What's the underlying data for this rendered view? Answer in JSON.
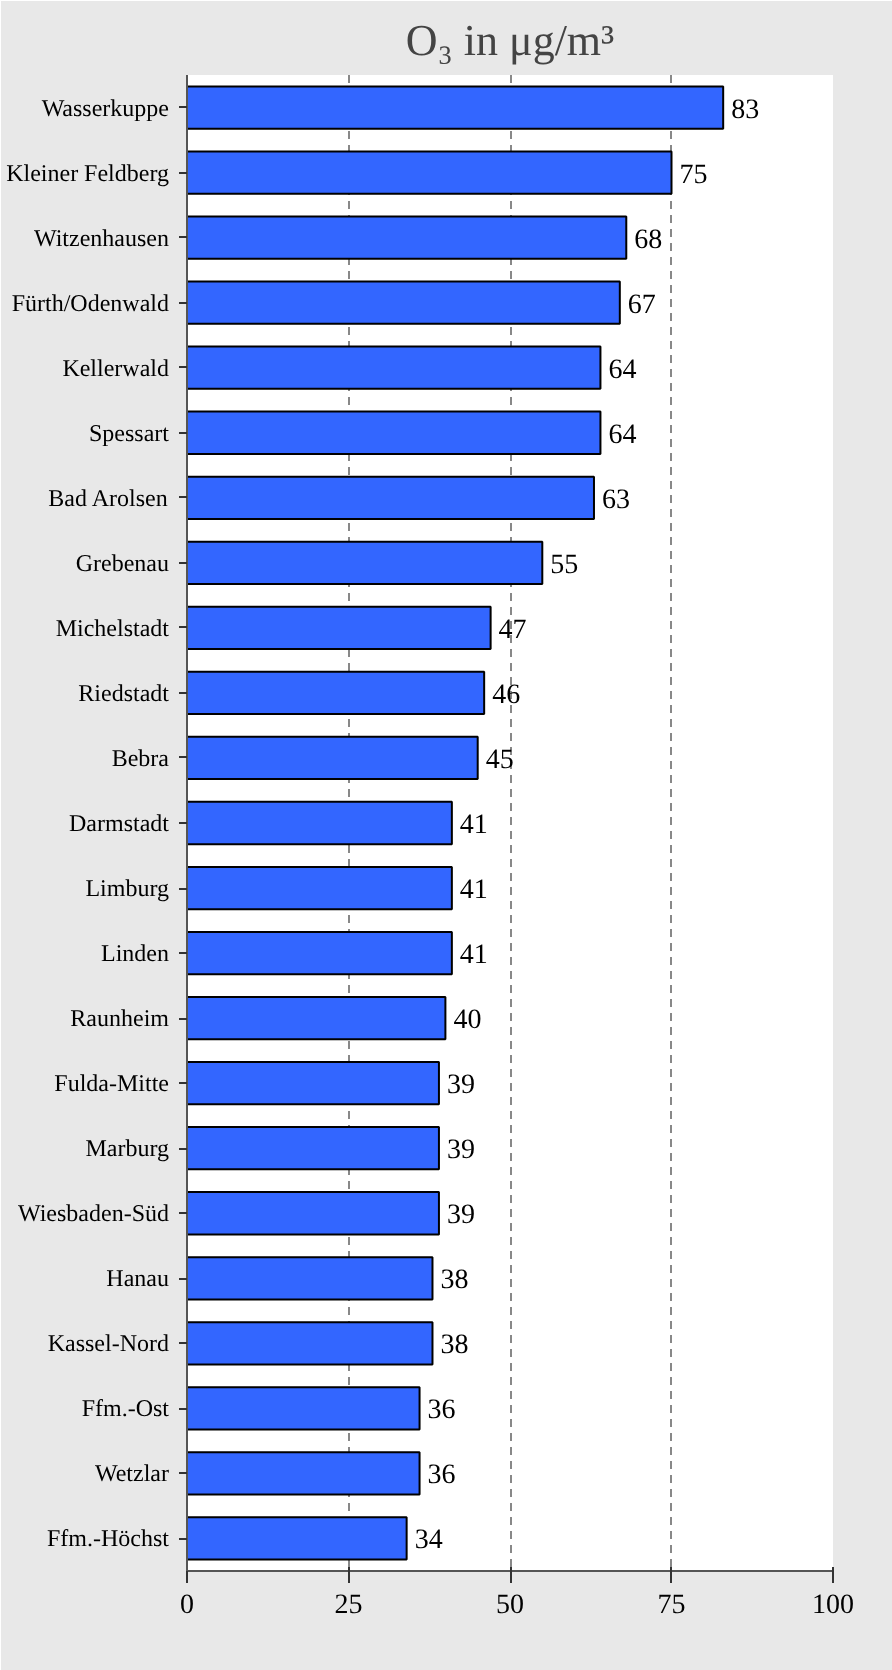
{
  "chart_data": {
    "type": "bar",
    "orientation": "horizontal",
    "title": "O₃ in μg/m³",
    "categories": [
      "Wasserkuppe",
      "Kleiner Feldberg",
      "Witzenhausen",
      "Fürth/Odenwald",
      "Kellerwald",
      "Spessart",
      "Bad Arolsen",
      "Grebenau",
      "Michelstadt",
      "Riedstadt",
      "Bebra",
      "Darmstadt",
      "Limburg",
      "Linden",
      "Raunheim",
      "Fulda-Mitte",
      "Marburg",
      "Wiesbaden-Süd",
      "Hanau",
      "Kassel-Nord",
      "Ffm.-Ost",
      "Wetzlar",
      "Ffm.-Höchst"
    ],
    "values": [
      83,
      75,
      68,
      67,
      64,
      64,
      63,
      55,
      47,
      46,
      45,
      41,
      41,
      41,
      40,
      39,
      39,
      39,
      38,
      38,
      36,
      36,
      34
    ],
    "color": "#3366ff",
    "xlim": [
      0,
      100
    ],
    "xticks": [
      0,
      25,
      50,
      75,
      100
    ],
    "grid": "x",
    "data_labels": true
  }
}
